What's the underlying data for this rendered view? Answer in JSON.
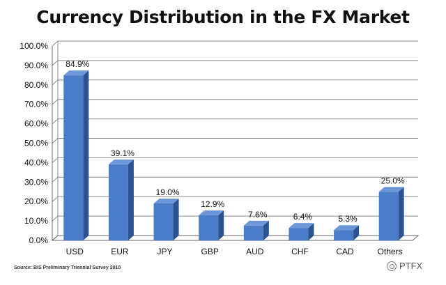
{
  "chart_data": {
    "type": "bar",
    "title": "Currency Distribution in the FX Market",
    "categories": [
      "USD",
      "EUR",
      "JPY",
      "GBP",
      "AUD",
      "CHF",
      "CAD",
      "Others"
    ],
    "values": [
      84.9,
      39.1,
      19.0,
      12.9,
      7.6,
      6.4,
      5.3,
      25.0
    ],
    "value_labels": [
      "84.9%",
      "39.1%",
      "19.0%",
      "12.9%",
      "7.6%",
      "6.4%",
      "5.3%",
      "25.0%"
    ],
    "y_ticks": [
      0,
      10,
      20,
      30,
      40,
      50,
      60,
      70,
      80,
      90,
      100
    ],
    "y_tick_labels": [
      "0.0%",
      "10.0%",
      "20.0%",
      "30.0%",
      "40.0%",
      "50.0%",
      "60.0%",
      "70.0%",
      "80.0%",
      "90.0%",
      "100.0%"
    ],
    "ylim": [
      0,
      100
    ],
    "grid": true,
    "legend": false,
    "style": "3d-bar",
    "colors": {
      "bar_front": "#4a7cc7",
      "bar_side": "#2c5391",
      "bar_top": "#6d98d8",
      "grid": "#8a8a8a"
    }
  },
  "source": "Source: BIS Preliminary Triennial Survey 2010",
  "watermark": "PTFX"
}
